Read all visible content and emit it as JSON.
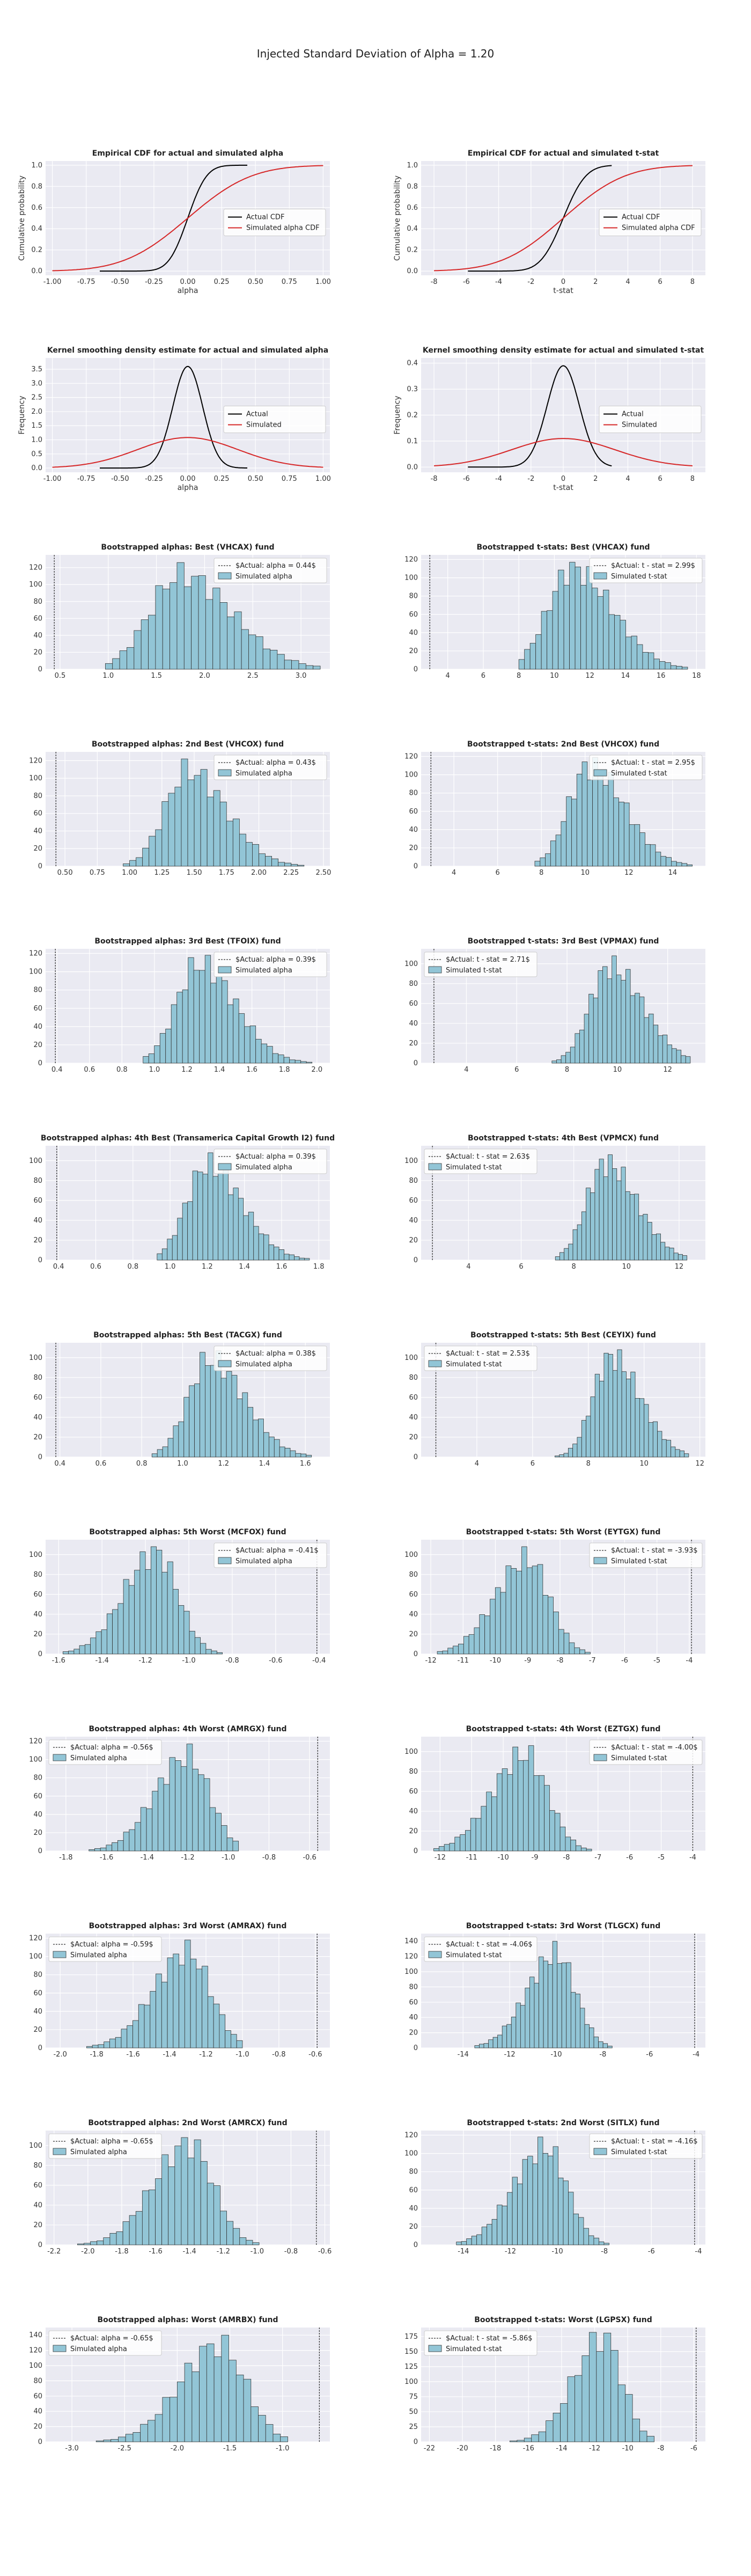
{
  "suptitle": "Injected Standard Deviation of Alpha = 1.20",
  "colors": {
    "background": "#eaeaf2",
    "grid": "#ffffff",
    "actual_line": "#000000",
    "simulated_line": "#d62728",
    "bar_fill": "#92c5d6",
    "bar_edge": "#333333",
    "vline": "#333333"
  },
  "chart_data": [
    {
      "type": "line",
      "title": "Empirical CDF for actual and simulated alpha",
      "xlabel": "alpha",
      "ylabel": "Cumulative probability",
      "xlim": [
        -1.05,
        1.05
      ],
      "ylim": [
        -0.04,
        1.04
      ],
      "xticks": [
        -1.0,
        -0.75,
        -0.5,
        -0.25,
        0.0,
        0.25,
        0.5,
        0.75,
        1.0
      ],
      "yticks": [
        0.0,
        0.2,
        0.4,
        0.6,
        0.8,
        1.0
      ],
      "legend": "center-right",
      "series": [
        {
          "name": "Actual CDF",
          "kind": "cdf",
          "sd": 0.11,
          "range": [
            -0.65,
            0.44
          ],
          "color": "#000000"
        },
        {
          "name": "Simulated alpha CDF",
          "kind": "cdf",
          "sd": 0.37,
          "range": [
            -1.0,
            1.0
          ],
          "color": "#d62728"
        }
      ]
    },
    {
      "type": "line",
      "title": "Empirical CDF for actual and simulated t-stat",
      "xlabel": "t-stat",
      "ylabel": "Cumulative probability",
      "xlim": [
        -8.8,
        8.8
      ],
      "ylim": [
        -0.04,
        1.04
      ],
      "xticks": [
        -8,
        -6,
        -4,
        -2,
        0,
        2,
        4,
        6,
        8
      ],
      "yticks": [
        0.0,
        0.2,
        0.4,
        0.6,
        0.8,
        1.0
      ],
      "legend": "center-right",
      "series": [
        {
          "name": "Actual CDF",
          "kind": "cdf",
          "sd": 1.1,
          "range": [
            -5.9,
            3.0
          ],
          "color": "#000000"
        },
        {
          "name": "Simulated alpha CDF",
          "kind": "cdf",
          "sd": 3.0,
          "range": [
            -8,
            8
          ],
          "color": "#d62728"
        }
      ]
    },
    {
      "type": "line",
      "title": "Kernel smoothing density estimate for actual and simulated alpha",
      "xlabel": "alpha",
      "ylabel": "Frequency",
      "xlim": [
        -1.05,
        1.05
      ],
      "ylim": [
        -0.15,
        3.9
      ],
      "xticks": [
        -1.0,
        -0.75,
        -0.5,
        -0.25,
        0.0,
        0.25,
        0.5,
        0.75,
        1.0
      ],
      "yticks": [
        0.0,
        0.5,
        1.0,
        1.5,
        2.0,
        2.5,
        3.0,
        3.5
      ],
      "legend": "center-right",
      "series": [
        {
          "name": "Actual",
          "kind": "pdf",
          "sd": 0.11,
          "peak": 3.6,
          "range": [
            -0.65,
            0.44
          ],
          "color": "#000000"
        },
        {
          "name": "Simulated",
          "kind": "pdf",
          "sd": 0.37,
          "peak": 1.08,
          "range": [
            -1.0,
            1.0
          ],
          "color": "#d62728"
        }
      ]
    },
    {
      "type": "line",
      "title": "Kernel smoothing density estimate for actual and simulated t-stat",
      "xlabel": "t-stat",
      "ylabel": "Frequency",
      "xlim": [
        -8.8,
        8.8
      ],
      "ylim": [
        -0.02,
        0.42
      ],
      "xticks": [
        -8,
        -6,
        -4,
        -2,
        0,
        2,
        4,
        6,
        8
      ],
      "yticks": [
        0.0,
        0.1,
        0.2,
        0.3,
        0.4
      ],
      "legend": "center-right",
      "series": [
        {
          "name": "Actual",
          "kind": "pdf",
          "sd": 1.0,
          "peak": 0.39,
          "range": [
            -5.9,
            3.0
          ],
          "color": "#000000"
        },
        {
          "name": "Simulated",
          "kind": "pdf",
          "sd": 3.2,
          "peak": 0.11,
          "range": [
            -8,
            8
          ],
          "color": "#d62728"
        }
      ]
    },
    {
      "type": "bar",
      "title": "Bootstrapped alphas: Best (VHCAX) fund",
      "actual_label": "$Actual: alpha = 0.44$",
      "actual": 0.44,
      "hist_label": "Simulated alpha",
      "legend": "top-right",
      "xlim": [
        0.35,
        3.3
      ],
      "ylim": [
        0,
        135
      ],
      "xticks": [
        0.5,
        1.0,
        1.5,
        2.0,
        2.5,
        3.0
      ],
      "yticks": [
        0,
        20,
        40,
        60,
        80,
        100,
        120
      ],
      "mean": 1.75,
      "sd": 0.4,
      "skew": true,
      "lo": 0.97,
      "hi": 3.2,
      "bins": 30,
      "peak": 126
    },
    {
      "type": "bar",
      "title": "Bootstrapped t-stats: Best (VHCAX) fund",
      "actual_label": "$Actual: t - stat = 2.99$",
      "actual": 2.99,
      "hist_label": "Simulated t-stat",
      "legend": "top-right",
      "xlim": [
        2.5,
        18.5
      ],
      "ylim": [
        0,
        125
      ],
      "xticks": [
        4,
        6,
        8,
        10,
        12,
        14,
        16,
        18
      ],
      "yticks": [
        0,
        20,
        40,
        60,
        80,
        100,
        120
      ],
      "mean": 11.0,
      "sd": 1.7,
      "skew": true,
      "lo": 8.0,
      "hi": 17.5,
      "bins": 30,
      "peak": 117
    },
    {
      "type": "bar",
      "title": "Bootstrapped alphas: 2nd Best (VHCOX) fund",
      "actual_label": "$Actual: alpha = 0.43$",
      "actual": 0.43,
      "hist_label": "Simulated alpha",
      "legend": "top-right",
      "xlim": [
        0.35,
        2.55
      ],
      "ylim": [
        0,
        130
      ],
      "xticks": [
        0.5,
        0.75,
        1.0,
        1.25,
        1.5,
        1.75,
        2.0,
        2.25,
        2.5
      ],
      "yticks": [
        0,
        20,
        40,
        60,
        80,
        100,
        120
      ],
      "mean": 1.45,
      "sd": 0.22,
      "skew": true,
      "lo": 0.95,
      "hi": 2.45,
      "bins": 30,
      "peak": 122
    },
    {
      "type": "bar",
      "title": "Bootstrapped t-stats: 2nd Best (VHCOX) fund",
      "actual_label": "$Actual: t - stat = 2.95$",
      "actual": 2.95,
      "hist_label": "Simulated t-stat",
      "legend": "top-right",
      "xlim": [
        2.5,
        15.5
      ],
      "ylim": [
        0,
        125
      ],
      "xticks": [
        4,
        6,
        8,
        10,
        12,
        14
      ],
      "yticks": [
        0,
        20,
        40,
        60,
        80,
        100,
        120
      ],
      "mean": 10.2,
      "sd": 1.2,
      "skew": true,
      "lo": 7.7,
      "hi": 14.9,
      "bins": 30,
      "peak": 119
    },
    {
      "type": "bar",
      "title": "Bootstrapped alphas: 3rd Best (TFOIX) fund",
      "actual_label": "$Actual: alpha = 0.39$",
      "actual": 0.39,
      "hist_label": "Simulated alpha",
      "legend": "top-right",
      "xlim": [
        0.33,
        2.08
      ],
      "ylim": [
        0,
        125
      ],
      "xticks": [
        0.4,
        0.6,
        0.8,
        1.0,
        1.2,
        1.4,
        1.6,
        1.8,
        2.0
      ],
      "yticks": [
        0,
        20,
        40,
        60,
        80,
        100,
        120
      ],
      "mean": 1.27,
      "sd": 0.17,
      "skew": true,
      "lo": 0.93,
      "hi": 1.97,
      "bins": 30,
      "peak": 118
    },
    {
      "type": "bar",
      "title": "Bootstrapped t-stats: 3rd Best (VPMAX) fund",
      "actual_label": "$Actual: t - stat = 2.71$",
      "actual": 2.71,
      "hist_label": "Simulated t-stat",
      "legend": "top-left",
      "xlim": [
        2.2,
        13.5
      ],
      "ylim": [
        0,
        115
      ],
      "xticks": [
        4,
        6,
        8,
        10,
        12
      ],
      "yticks": [
        0,
        20,
        40,
        60,
        80,
        100
      ],
      "mean": 9.7,
      "sd": 1.0,
      "skew": true,
      "lo": 7.4,
      "hi": 12.9,
      "bins": 30,
      "peak": 108
    },
    {
      "type": "bar",
      "title": "Bootstrapped alphas: 4th Best (Transamerica Capital Growth I2) fund",
      "actual_label": "$Actual: alpha = 0.39$",
      "actual": 0.39,
      "hist_label": "Simulated alpha",
      "legend": "top-right",
      "xlim": [
        0.33,
        1.86
      ],
      "ylim": [
        0,
        115
      ],
      "xticks": [
        0.4,
        0.6,
        0.8,
        1.0,
        1.2,
        1.4,
        1.6,
        1.8
      ],
      "yticks": [
        0,
        20,
        40,
        60,
        80,
        100
      ],
      "mean": 1.2,
      "sd": 0.14,
      "skew": true,
      "lo": 0.93,
      "hi": 1.75,
      "bins": 30,
      "peak": 108
    },
    {
      "type": "bar",
      "title": "Bootstrapped t-stats: 4th Best (VPMCX) fund",
      "actual_label": "$Actual: t - stat = 2.63$",
      "actual": 2.63,
      "hist_label": "Simulated t-stat",
      "legend": "top-left",
      "xlim": [
        2.2,
        13.0
      ],
      "ylim": [
        0,
        115
      ],
      "xticks": [
        4,
        6,
        8,
        10,
        12
      ],
      "yticks": [
        0,
        20,
        40,
        60,
        80,
        100
      ],
      "mean": 9.2,
      "sd": 0.9,
      "skew": true,
      "lo": 7.3,
      "hi": 12.3,
      "bins": 30,
      "peak": 106
    },
    {
      "type": "bar",
      "title": "Bootstrapped alphas: 5th Best (TACGX) fund",
      "actual_label": "$Actual: alpha = 0.38$",
      "actual": 0.38,
      "hist_label": "Simulated alpha",
      "legend": "top-right",
      "xlim": [
        0.33,
        1.72
      ],
      "ylim": [
        0,
        115
      ],
      "xticks": [
        0.4,
        0.6,
        0.8,
        1.0,
        1.2,
        1.4,
        1.6
      ],
      "yticks": [
        0,
        20,
        40,
        60,
        80,
        100
      ],
      "mean": 1.13,
      "sd": 0.13,
      "skew": true,
      "lo": 0.85,
      "hi": 1.63,
      "bins": 30,
      "peak": 107
    },
    {
      "type": "bar",
      "title": "Bootstrapped t-stats: 5th Best (CEYIX) fund",
      "actual_label": "$Actual: t - stat = 2.53$",
      "actual": 2.53,
      "hist_label": "Simulated t-stat",
      "legend": "top-left",
      "xlim": [
        2.0,
        12.2
      ],
      "ylim": [
        0,
        115
      ],
      "xticks": [
        4,
        6,
        8,
        10,
        12
      ],
      "yticks": [
        0,
        20,
        40,
        60,
        80,
        100
      ],
      "mean": 8.8,
      "sd": 0.8,
      "skew": true,
      "lo": 6.8,
      "hi": 11.6,
      "bins": 30,
      "peak": 108
    },
    {
      "type": "bar",
      "title": "Bootstrapped alphas: 5th Worst (MCFOX) fund",
      "actual_label": "$Actual: alpha = -0.41$",
      "actual": -0.41,
      "hist_label": "Simulated alpha",
      "legend": "top-right",
      "xlim": [
        -1.66,
        -0.35
      ],
      "ylim": [
        0,
        115
      ],
      "xticks": [
        -1.6,
        -1.4,
        -1.2,
        -1.0,
        -0.8,
        -0.6,
        -0.4
      ],
      "yticks": [
        0,
        20,
        40,
        60,
        80,
        100
      ],
      "mean": -1.15,
      "sd": 0.12,
      "skew": false,
      "lo": -1.58,
      "hi": -0.82,
      "bins": 30,
      "peak": 108
    },
    {
      "type": "bar",
      "title": "Bootstrapped t-stats: 5th Worst (EYTGX) fund",
      "actual_label": "$Actual: t - stat = -3.93$",
      "actual": -3.93,
      "hist_label": "Simulated t-stat",
      "legend": "top-right",
      "xlim": [
        -12.3,
        -3.5
      ],
      "ylim": [
        0,
        115
      ],
      "xticks": [
        -12,
        -11,
        -10,
        -9,
        -8,
        -7,
        -6,
        -5,
        -4
      ],
      "yticks": [
        0,
        20,
        40,
        60,
        80,
        100
      ],
      "mean": -9.0,
      "sd": 0.8,
      "skew": false,
      "lo": -11.8,
      "hi": -6.9,
      "bins": 30,
      "peak": 108
    },
    {
      "type": "bar",
      "title": "Bootstrapped alphas: 4th Worst (AMRGX) fund",
      "actual_label": "$Actual: alpha = -0.56$",
      "actual": -0.56,
      "hist_label": "Simulated alpha",
      "legend": "top-left",
      "xlim": [
        -1.9,
        -0.5
      ],
      "ylim": [
        0,
        125
      ],
      "xticks": [
        -1.8,
        -1.6,
        -1.4,
        -1.2,
        -1.0,
        -0.8,
        -0.6
      ],
      "yticks": [
        0,
        20,
        40,
        60,
        80,
        100,
        120
      ],
      "mean": -1.2,
      "sd": 0.13,
      "skew": false,
      "lo": -1.8,
      "hi": -0.95,
      "bins": 30,
      "peak": 117
    },
    {
      "type": "bar",
      "title": "Bootstrapped t-stats: 4th Worst (EZTGX) fund",
      "actual_label": "$Actual: t - stat = -4.00$",
      "actual": -4.0,
      "hist_label": "Simulated t-stat",
      "legend": "top-right",
      "xlim": [
        -12.6,
        -3.6
      ],
      "ylim": [
        0,
        115
      ],
      "xticks": [
        -12,
        -11,
        -10,
        -9,
        -8,
        -7,
        -6,
        -5,
        -4
      ],
      "yticks": [
        0,
        20,
        40,
        60,
        80,
        100
      ],
      "mean": -9.3,
      "sd": 0.85,
      "skew": false,
      "lo": -12.2,
      "hi": -7.2,
      "bins": 30,
      "peak": 106
    },
    {
      "type": "bar",
      "title": "Bootstrapped alphas: 3rd Worst (AMRAX) fund",
      "actual_label": "$Actual: alpha = -0.59$",
      "actual": -0.59,
      "hist_label": "Simulated alpha",
      "legend": "top-left",
      "xlim": [
        -2.08,
        -0.52
      ],
      "ylim": [
        0,
        125
      ],
      "xticks": [
        -2.0,
        -1.8,
        -1.6,
        -1.4,
        -1.2,
        -1.0,
        -0.8,
        -0.6
      ],
      "yticks": [
        0,
        20,
        40,
        60,
        80,
        100,
        120
      ],
      "mean": -1.3,
      "sd": 0.15,
      "skew": false,
      "lo": -1.95,
      "hi": -1.0,
      "bins": 30,
      "peak": 118
    },
    {
      "type": "bar",
      "title": "Bootstrapped t-stats: 3rd Worst (TLGCX) fund",
      "actual_label": "$Actual: t - stat = -4.06$",
      "actual": -4.06,
      "hist_label": "Simulated t-stat",
      "legend": "top-left",
      "xlim": [
        -15.8,
        -3.6
      ],
      "ylim": [
        0,
        150
      ],
      "xticks": [
        -14,
        -12,
        -10,
        -8,
        -6,
        -4
      ],
      "yticks": [
        0,
        20,
        40,
        60,
        80,
        100,
        120,
        140
      ],
      "mean": -10.0,
      "sd": 1.0,
      "skew": false,
      "lo": -13.5,
      "hi": -7.6,
      "bins": 30,
      "peak": 140
    },
    {
      "type": "bar",
      "title": "Bootstrapped alphas: 2nd Worst (AMRCX) fund",
      "actual_label": "$Actual: alpha = -0.65$",
      "actual": -0.65,
      "hist_label": "Simulated alpha",
      "legend": "top-left",
      "xlim": [
        -2.25,
        -0.57
      ],
      "ylim": [
        0,
        115
      ],
      "xticks": [
        -2.2,
        -2.0,
        -1.8,
        -1.6,
        -1.4,
        -1.2,
        -1.0,
        -0.8,
        -0.6
      ],
      "yticks": [
        0,
        20,
        40,
        60,
        80,
        100
      ],
      "mean": -1.4,
      "sd": 0.17,
      "skew": false,
      "lo": -2.1,
      "hi": -0.95,
      "bins": 30,
      "peak": 108
    },
    {
      "type": "bar",
      "title": "Bootstrapped t-stats: 2nd Worst (SITLX) fund",
      "actual_label": "$Actual: t - stat = -4.16$",
      "actual": -4.16,
      "hist_label": "Simulated t-stat",
      "legend": "top-right",
      "xlim": [
        -15.8,
        -3.7
      ],
      "ylim": [
        0,
        125
      ],
      "xticks": [
        -14,
        -12,
        -10,
        -8,
        -6,
        -4
      ],
      "yticks": [
        0,
        20,
        40,
        60,
        80,
        100,
        120
      ],
      "mean": -10.5,
      "sd": 1.1,
      "skew": false,
      "lo": -14.3,
      "hi": -7.8,
      "bins": 30,
      "peak": 118
    },
    {
      "type": "bar",
      "title": "Bootstrapped alphas: Worst (AMRBX) fund",
      "actual_label": "$Actual: alpha = -0.65$",
      "actual": -0.65,
      "hist_label": "Simulated alpha",
      "legend": "top-left",
      "xlim": [
        -3.25,
        -0.55
      ],
      "ylim": [
        0,
        150
      ],
      "xticks": [
        -3.0,
        -2.5,
        -2.0,
        -1.5,
        -1.0
      ],
      "yticks": [
        0,
        20,
        40,
        60,
        80,
        100,
        120,
        140
      ],
      "mean": -1.6,
      "sd": 0.3,
      "skew": false,
      "lo": -3.05,
      "hi": -0.95,
      "bins": 30,
      "peak": 140
    },
    {
      "type": "bar",
      "title": "Bootstrapped t-stats: Worst (LGPSX) fund",
      "actual_label": "$Actual: t - stat = -5.86$",
      "actual": -5.86,
      "hist_label": "Simulated t-stat",
      "legend": "top-left",
      "xlim": [
        -22.5,
        -5.3
      ],
      "ylim": [
        0,
        190
      ],
      "xticks": [
        -22,
        -20,
        -18,
        -16,
        -14,
        -12,
        -10,
        -8,
        -6
      ],
      "yticks": [
        0,
        25,
        50,
        75,
        100,
        125,
        150,
        175
      ],
      "mean": -11.5,
      "sd": 1.4,
      "skew": false,
      "lo": -21.5,
      "hi": -8.4,
      "bins": 30,
      "peak": 182
    }
  ]
}
